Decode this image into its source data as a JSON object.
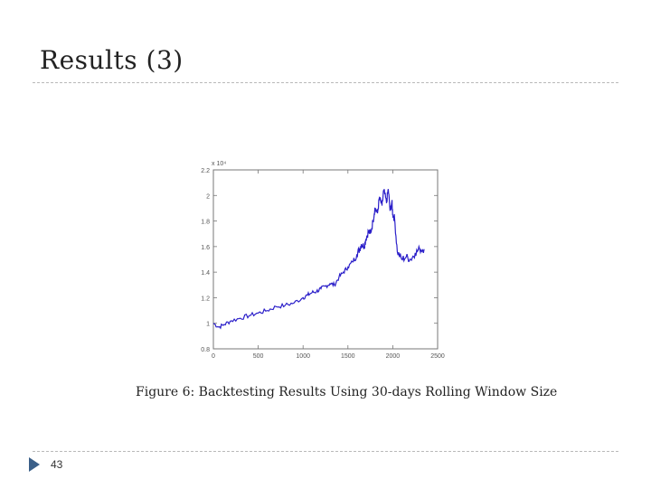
{
  "slide": {
    "title": "Results (3)",
    "page_number": "43",
    "caption": "Figure 6: Backtesting Results Using 30-days Rolling Window Size",
    "bullet_icon": "triangle-bullet-icon"
  },
  "chart_data": {
    "type": "line",
    "title": "",
    "xlabel": "",
    "ylabel": "",
    "y_multiplier": "x 10⁴",
    "xlim": [
      0,
      2500
    ],
    "ylim": [
      0.8,
      2.2
    ],
    "x_ticks": [
      0,
      500,
      1000,
      1500,
      2000,
      2500
    ],
    "y_ticks": [
      0.8,
      1.0,
      1.2,
      1.4,
      1.6,
      1.8,
      2.0,
      2.2
    ],
    "x_tick_labels": [
      "0",
      "500",
      "1000",
      "1500",
      "2000",
      "2500"
    ],
    "y_tick_labels": [
      "0.8",
      "1",
      "1.2",
      "1.4",
      "1.6",
      "1.8",
      "2",
      "2.2"
    ],
    "grid": false,
    "line_color": "#2b1fc9",
    "series": [
      {
        "x": [
          0,
          60,
          120,
          200,
          300,
          400,
          500,
          600,
          700,
          800,
          900,
          1000,
          1050,
          1100,
          1150,
          1200,
          1250,
          1300,
          1350,
          1400,
          1450,
          1500,
          1550,
          1600,
          1630,
          1650,
          1680,
          1700,
          1730,
          1750,
          1780,
          1800,
          1830,
          1850,
          1880,
          1900,
          1930,
          1950,
          1970,
          1990,
          2000,
          2020,
          2050,
          2100,
          2150,
          2200,
          2250,
          2300,
          2350
        ],
        "y": [
          1.0,
          0.97,
          0.99,
          1.02,
          1.04,
          1.06,
          1.08,
          1.1,
          1.13,
          1.14,
          1.16,
          1.2,
          1.22,
          1.24,
          1.25,
          1.27,
          1.29,
          1.31,
          1.3,
          1.36,
          1.4,
          1.44,
          1.48,
          1.54,
          1.58,
          1.62,
          1.6,
          1.66,
          1.72,
          1.7,
          1.8,
          1.9,
          1.86,
          1.98,
          1.92,
          2.04,
          1.94,
          2.05,
          1.88,
          1.95,
          1.85,
          1.82,
          1.56,
          1.5,
          1.52,
          1.5,
          1.55,
          1.58,
          1.58
        ]
      }
    ]
  }
}
